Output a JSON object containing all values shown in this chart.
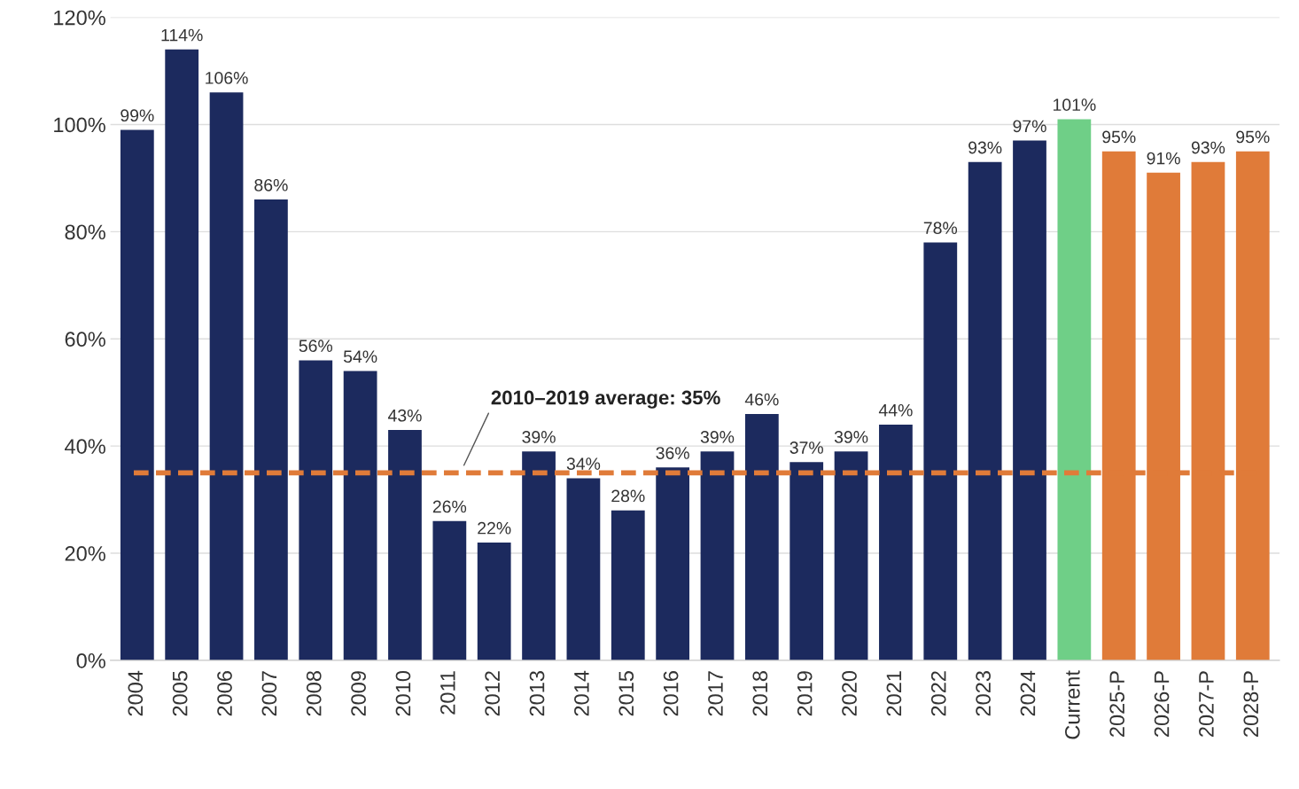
{
  "chart_data": {
    "type": "bar",
    "categories": [
      "2004",
      "2005",
      "2006",
      "2007",
      "2008",
      "2009",
      "2010",
      "2011",
      "2012",
      "2013",
      "2014",
      "2015",
      "2016",
      "2017",
      "2018",
      "2019",
      "2020",
      "2021",
      "2022",
      "2023",
      "2024",
      "Current",
      "2025-P",
      "2026-P",
      "2027-P",
      "2028-P"
    ],
    "values": [
      99,
      114,
      106,
      86,
      56,
      54,
      43,
      26,
      22,
      39,
      34,
      28,
      36,
      39,
      46,
      37,
      39,
      44,
      78,
      93,
      97,
      101,
      95,
      91,
      93,
      95
    ],
    "value_labels": [
      "99%",
      "114%",
      "106%",
      "86%",
      "56%",
      "54%",
      "43%",
      "26%",
      "22%",
      "39%",
      "34%",
      "28%",
      "36%",
      "39%",
      "46%",
      "37%",
      "39%",
      "44%",
      "78%",
      "93%",
      "97%",
      "101%",
      "95%",
      "91%",
      "93%",
      "95%"
    ],
    "colors": [
      "#1c2a5e",
      "#1c2a5e",
      "#1c2a5e",
      "#1c2a5e",
      "#1c2a5e",
      "#1c2a5e",
      "#1c2a5e",
      "#1c2a5e",
      "#1c2a5e",
      "#1c2a5e",
      "#1c2a5e",
      "#1c2a5e",
      "#1c2a5e",
      "#1c2a5e",
      "#1c2a5e",
      "#1c2a5e",
      "#1c2a5e",
      "#1c2a5e",
      "#1c2a5e",
      "#1c2a5e",
      "#1c2a5e",
      "#6fcf87",
      "#e07b39",
      "#e07b39",
      "#e07b39",
      "#e07b39"
    ],
    "ylim": [
      0,
      120
    ],
    "yticks": [
      {
        "value": 0,
        "label": "0%"
      },
      {
        "value": 20,
        "label": "20%"
      },
      {
        "value": 40,
        "label": "40%"
      },
      {
        "value": 60,
        "label": "60%"
      },
      {
        "value": 80,
        "label": "80%"
      },
      {
        "value": 100,
        "label": "100%"
      },
      {
        "value": 120,
        "label": "120%"
      }
    ],
    "grid": "y",
    "legend": false,
    "ref_lines": [
      {
        "axis": "y",
        "value": 35,
        "label": "2010–2019 average: 35%",
        "color": "#e07b39",
        "line_style": "dashed"
      }
    ]
  }
}
